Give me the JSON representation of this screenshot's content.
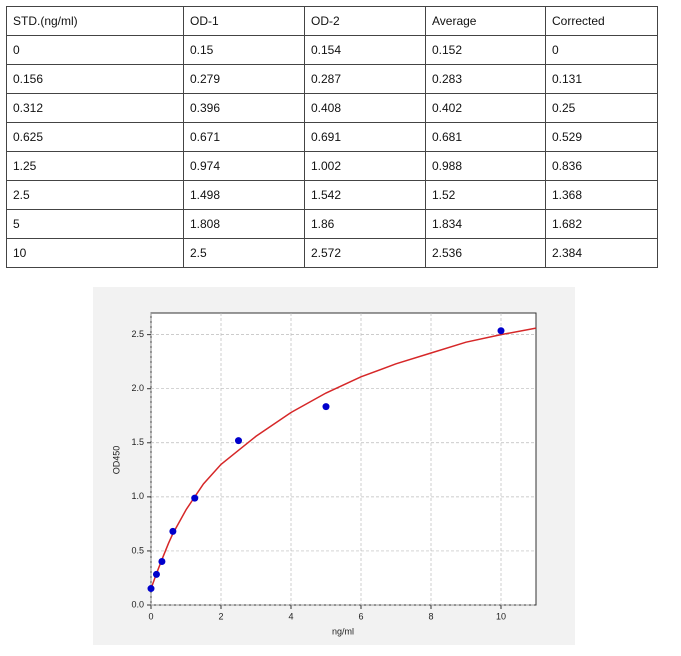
{
  "table": {
    "header": [
      "STD.(ng/ml)",
      "OD-1",
      "OD-2",
      "Average",
      "Corrected"
    ],
    "rows": [
      [
        "0",
        "0.15",
        "0.154",
        "0.152",
        "0"
      ],
      [
        "0.156",
        "0.279",
        "0.287",
        "0.283",
        "0.131"
      ],
      [
        "0.312",
        "0.396",
        "0.408",
        "0.402",
        "0.25"
      ],
      [
        "0.625",
        "0.671",
        "0.691",
        "0.681",
        "0.529"
      ],
      [
        "1.25",
        "0.974",
        "1.002",
        "0.988",
        "0.836"
      ],
      [
        "2.5",
        "1.498",
        "1.542",
        "1.52",
        "1.368"
      ],
      [
        "5",
        "1.808",
        "1.86",
        "1.834",
        "1.682"
      ],
      [
        "10",
        "2.5",
        "2.572",
        "2.536",
        "2.384"
      ]
    ]
  },
  "chart_data": {
    "type": "scatter",
    "xlabel": "ng/ml",
    "ylabel": "OD450",
    "xlim": [
      0,
      11
    ],
    "ylim": [
      0,
      2.7
    ],
    "xticks": [
      0,
      2,
      4,
      6,
      8,
      10
    ],
    "yticks": [
      {
        "value": 0,
        "label": "0.0"
      },
      {
        "value": 0.5,
        "label": "0.5"
      },
      {
        "value": 1,
        "label": "1.0"
      },
      {
        "value": 1.5,
        "label": "1.5"
      },
      {
        "value": 2,
        "label": "2.0"
      },
      {
        "value": 2.5,
        "label": "2.5"
      }
    ],
    "grid": true,
    "series": [
      {
        "color": "#0000cc",
        "x": [
          0,
          0.156,
          0.312,
          0.625,
          1.25,
          2.5,
          5,
          10
        ],
        "values": [
          0.152,
          0.283,
          0.402,
          0.681,
          0.988,
          1.52,
          1.834,
          2.536
        ]
      }
    ],
    "fit_line": {
      "color": "#d62728",
      "x": [
        0,
        0.156,
        0.312,
        0.5,
        0.625,
        1,
        1.25,
        1.5,
        2,
        2.5,
        3,
        4,
        5,
        6,
        7,
        8,
        9,
        10,
        11
      ],
      "values": [
        0.15,
        0.29,
        0.42,
        0.57,
        0.66,
        0.88,
        1.0,
        1.12,
        1.3,
        1.43,
        1.56,
        1.78,
        1.96,
        2.11,
        2.23,
        2.33,
        2.43,
        2.5,
        2.56
      ]
    }
  }
}
